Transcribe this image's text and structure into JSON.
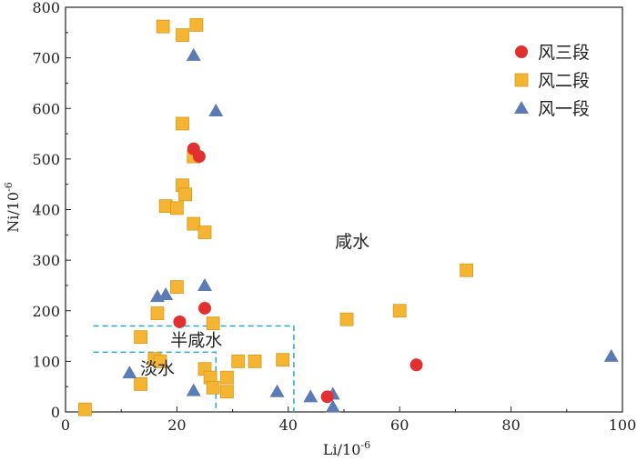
{
  "chart_data": {
    "type": "scatter",
    "xlabel": "Li/10",
    "xlabel_sup": "-6",
    "ylabel": "Ni/10",
    "ylabel_sup": "-6",
    "xlim": [
      0,
      100
    ],
    "ylim": [
      0,
      800
    ],
    "xticks": [
      "0",
      "20",
      "40",
      "60",
      "80",
      "100"
    ],
    "yticks": [
      "0",
      "100",
      "200",
      "300",
      "400",
      "500",
      "600",
      "700",
      "800"
    ],
    "grid": false,
    "legend_position": "top-right",
    "series": [
      {
        "name": "风三段",
        "marker": "circle",
        "color": "#e03030",
        "points": [
          [
            23,
            520
          ],
          [
            24,
            505
          ],
          [
            25,
            205
          ],
          [
            20.5,
            178
          ],
          [
            47,
            30
          ],
          [
            63,
            93
          ]
        ]
      },
      {
        "name": "风二段",
        "marker": "square",
        "color": "#f5b432",
        "points": [
          [
            17.5,
            762
          ],
          [
            23.5,
            765
          ],
          [
            21,
            745
          ],
          [
            21,
            570
          ],
          [
            23,
            505
          ],
          [
            21,
            448
          ],
          [
            21.5,
            430
          ],
          [
            18,
            407
          ],
          [
            20,
            403
          ],
          [
            23,
            372
          ],
          [
            25,
            355
          ],
          [
            20,
            247
          ],
          [
            16.5,
            195
          ],
          [
            26.5,
            175
          ],
          [
            13.5,
            148
          ],
          [
            16,
            105
          ],
          [
            17,
            100
          ],
          [
            25,
            85
          ],
          [
            26,
            68
          ],
          [
            26.5,
            48
          ],
          [
            29,
            68
          ],
          [
            31,
            100
          ],
          [
            34,
            100
          ],
          [
            39,
            103
          ],
          [
            29,
            40
          ],
          [
            13.5,
            55
          ],
          [
            3.5,
            5
          ],
          [
            50.5,
            183
          ],
          [
            60,
            200
          ],
          [
            72,
            280
          ]
        ]
      },
      {
        "name": "风一段",
        "marker": "triangle",
        "color": "#5b7bb5",
        "points": [
          [
            23,
            705
          ],
          [
            27,
            595
          ],
          [
            25,
            250
          ],
          [
            16.5,
            228
          ],
          [
            18,
            232
          ],
          [
            11.5,
            77
          ],
          [
            23,
            42
          ],
          [
            38,
            40
          ],
          [
            44,
            30
          ],
          [
            48,
            35
          ],
          [
            48,
            10
          ],
          [
            98,
            110
          ]
        ]
      }
    ],
    "annotations": [
      {
        "text": "咸水",
        "x": 51.5,
        "y": 325
      },
      {
        "text": "半咸水",
        "x": 23.5,
        "y": 130
      },
      {
        "text": "淡水",
        "x": 16.5,
        "y": 75
      }
    ],
    "regions": [
      {
        "name": "brackish",
        "x": [
          5,
          41
        ],
        "y": [
          0,
          170
        ]
      },
      {
        "name": "fresh",
        "x": [
          5,
          27
        ],
        "y": [
          0,
          118
        ]
      }
    ]
  }
}
